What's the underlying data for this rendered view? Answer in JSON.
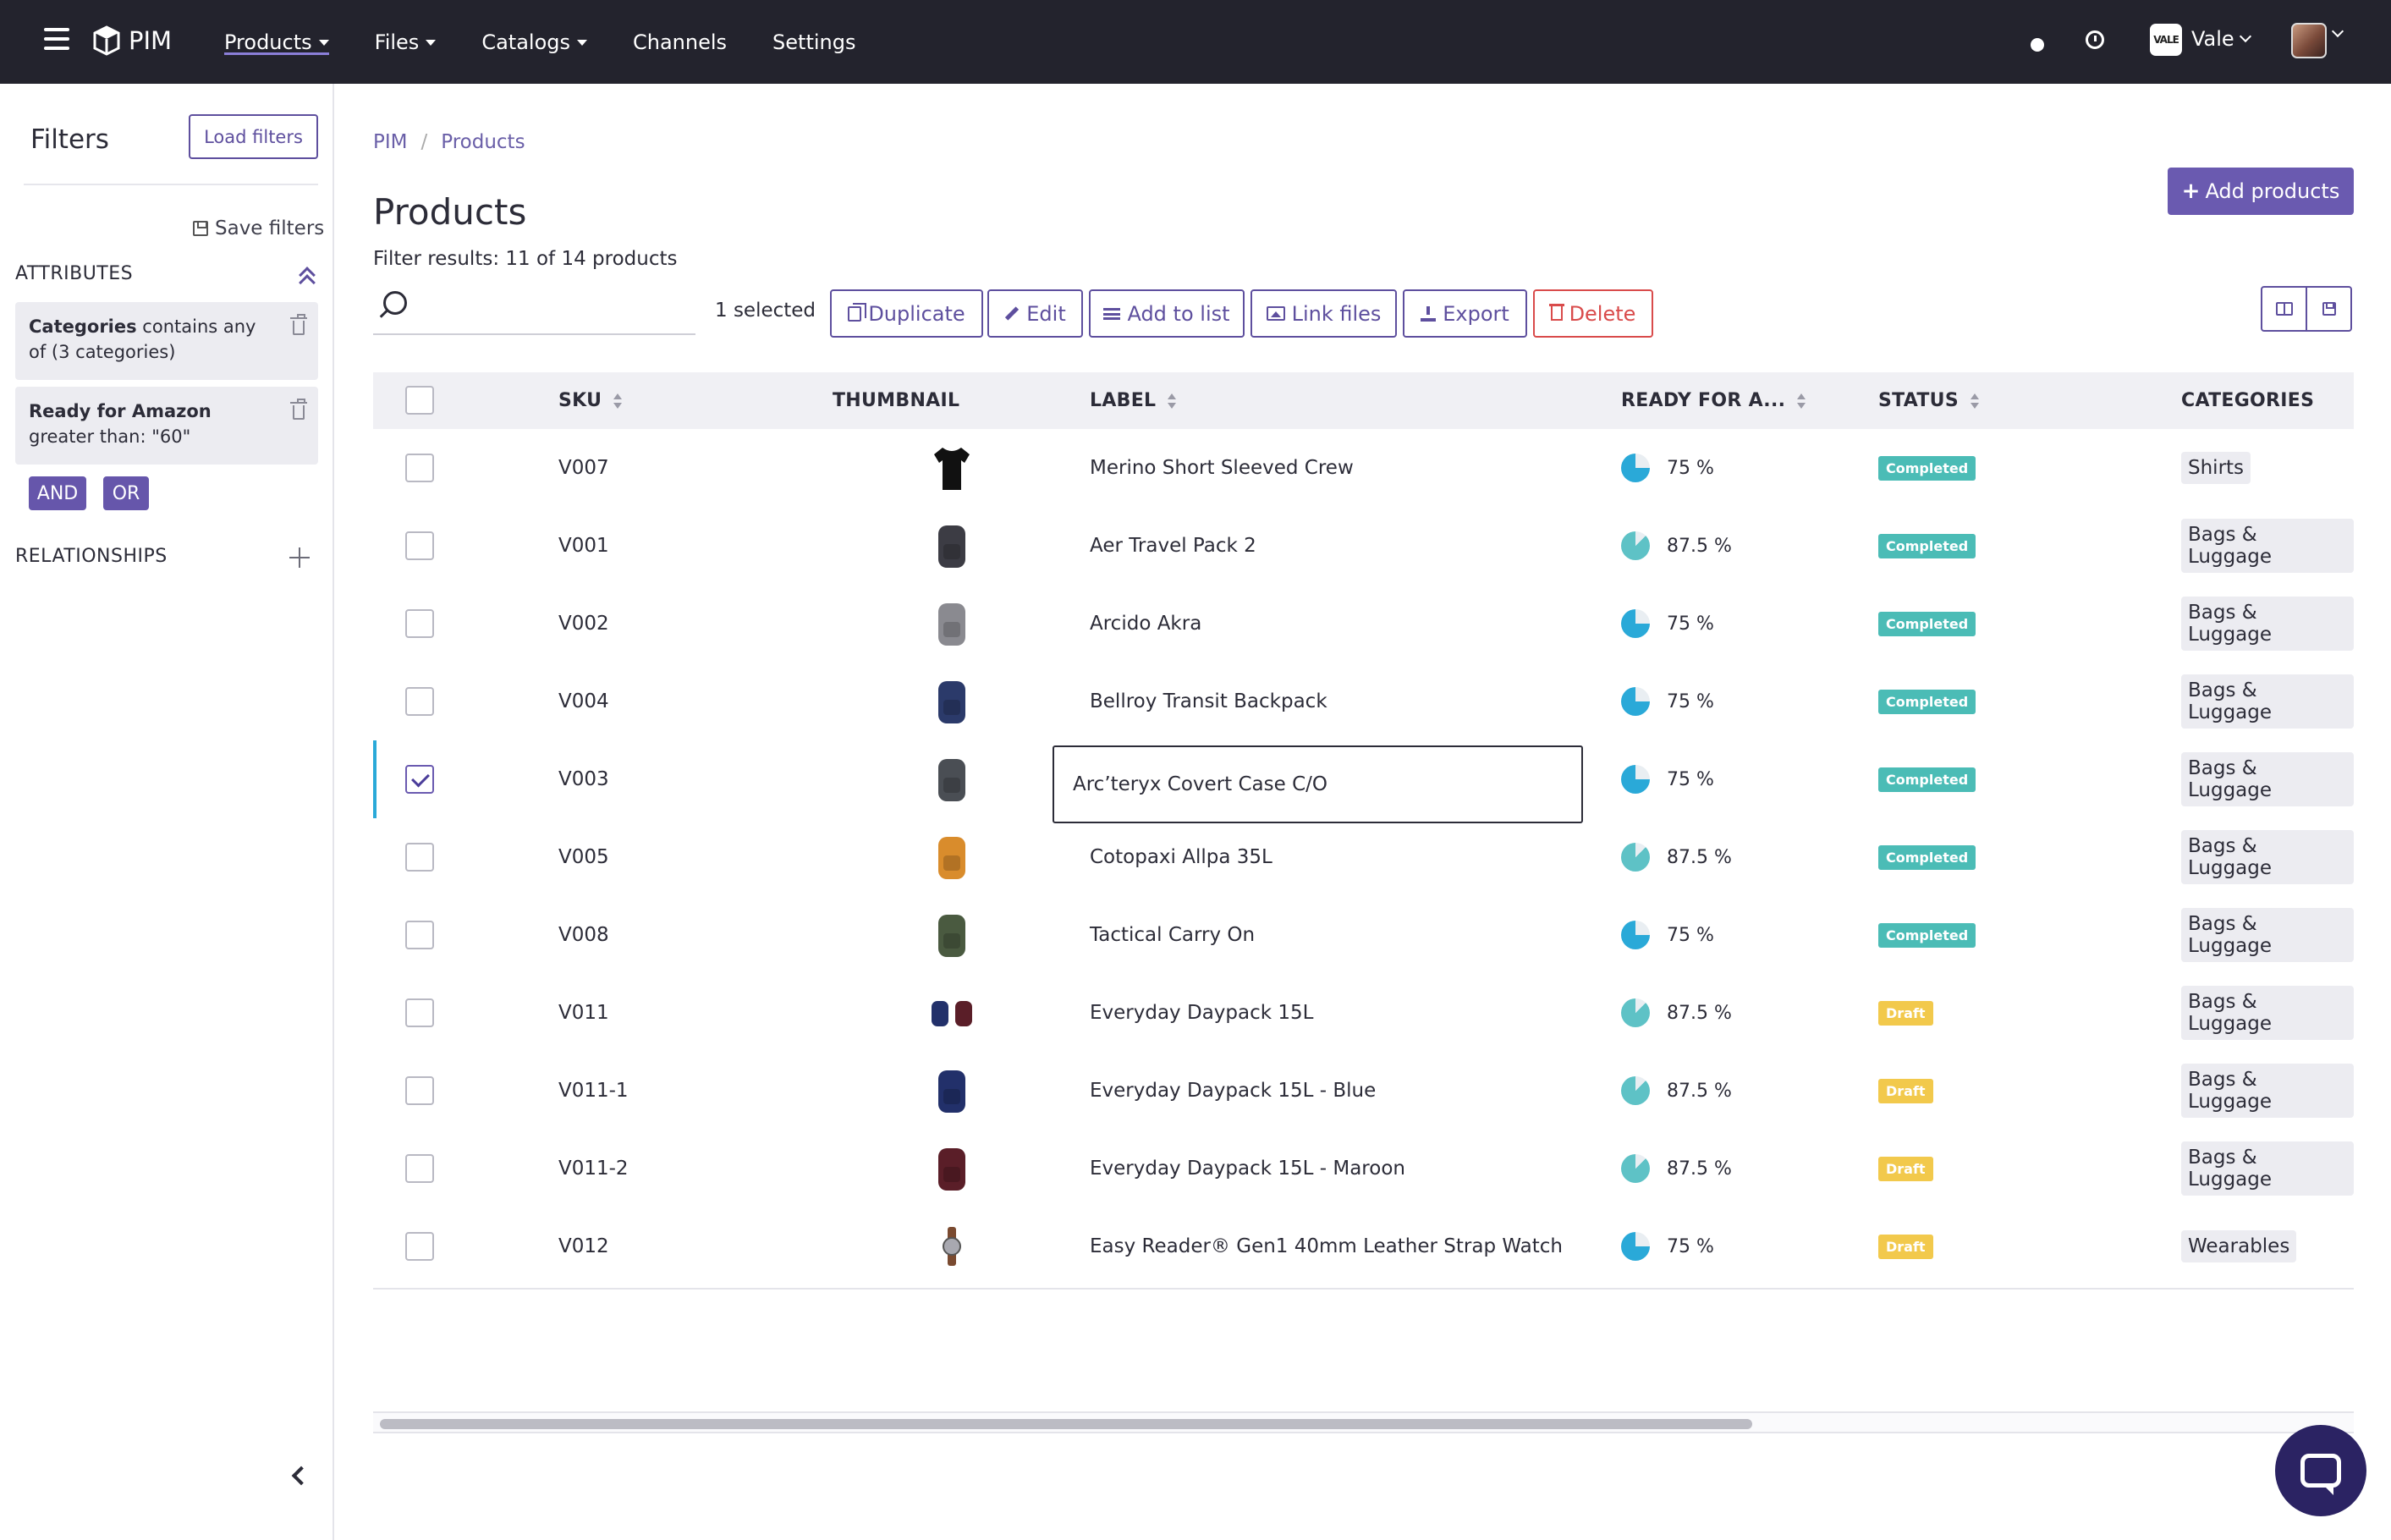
{
  "app": {
    "brand": "PIM"
  },
  "nav": [
    {
      "label": "Products",
      "dropdown": true,
      "active": true
    },
    {
      "label": "Files",
      "dropdown": true
    },
    {
      "label": "Catalogs",
      "dropdown": true
    },
    {
      "label": "Channels",
      "dropdown": false
    },
    {
      "label": "Settings",
      "dropdown": false
    }
  ],
  "header": {
    "org_logo": "VALE",
    "org_name": "Vale"
  },
  "sidebar": {
    "title": "Filters",
    "load_filters": "Load filters",
    "save_filters": "Save filters",
    "attributes_label": "ATTRIBUTES",
    "filters": [
      {
        "field": "Categories",
        "rest": " contains any of (3 categories)"
      },
      {
        "field": "Ready for Amazon",
        "rest": " greater than: \"60\""
      }
    ],
    "and_label": "AND",
    "or_label": "OR",
    "relationships_label": "RELATIONSHIPS"
  },
  "breadcrumb": {
    "root": "PIM",
    "sep": "/",
    "current": "Products"
  },
  "page": {
    "title": "Products",
    "filter_results": "Filter results: 11 of 14 products",
    "add_products": "Add products",
    "search_placeholder": "",
    "selected_count": "1 selected"
  },
  "actions": {
    "duplicate": "Duplicate",
    "edit": "Edit",
    "add_to_list": "Add to list",
    "link_files": "Link files",
    "export": "Export",
    "delete": "Delete"
  },
  "colors": {
    "completed": "#4bbcb6",
    "draft": "#f2c94c",
    "pie_75": "#2aa9d8",
    "pie_87": "#5ec2c6",
    "accent": "#6a5ab0"
  },
  "table": {
    "columns": {
      "sku": "SKU",
      "thumbnail": "THUMBNAIL",
      "label": "LABEL",
      "ready": "READY FOR A...",
      "status": "STATUS",
      "categories": "CATEGORIES"
    },
    "editing_value": "Arc’teryx Covert Case C/O",
    "rows": [
      {
        "sku": "V007",
        "thumb": "tshirt-icon",
        "label": "Merino Short Sleeved Crew",
        "ready_pct": "75 %",
        "ready_fraction": 0.75,
        "status": "Completed",
        "category": "Shirts",
        "selected": false
      },
      {
        "sku": "V001",
        "thumb": "backpack-icon",
        "label": "Aer Travel Pack 2",
        "ready_pct": "87.5 %",
        "ready_fraction": 0.875,
        "status": "Completed",
        "category": "Bags & Luggage",
        "selected": false
      },
      {
        "sku": "V002",
        "thumb": "backpack-icon",
        "label": "Arcido Akra",
        "ready_pct": "75 %",
        "ready_fraction": 0.75,
        "status": "Completed",
        "category": "Bags & Luggage",
        "selected": false
      },
      {
        "sku": "V004",
        "thumb": "backpack-icon",
        "label": "Bellroy Transit Backpack",
        "ready_pct": "75 %",
        "ready_fraction": 0.75,
        "status": "Completed",
        "category": "Bags & Luggage",
        "selected": false
      },
      {
        "sku": "V003",
        "thumb": "backpack-icon",
        "label": "Arc’teryx Covert Case C/O",
        "ready_pct": "75 %",
        "ready_fraction": 0.75,
        "status": "Completed",
        "category": "Bags & Luggage",
        "selected": true
      },
      {
        "sku": "V005",
        "thumb": "backpack-icon",
        "label": "Cotopaxi Allpa 35L",
        "ready_pct": "87.5 %",
        "ready_fraction": 0.875,
        "status": "Completed",
        "category": "Bags & Luggage",
        "selected": false
      },
      {
        "sku": "V008",
        "thumb": "backpack-icon",
        "label": "Tactical Carry On",
        "ready_pct": "75 %",
        "ready_fraction": 0.75,
        "status": "Completed",
        "category": "Bags & Luggage",
        "selected": false
      },
      {
        "sku": "V011",
        "thumb": "backpack-pair-icon",
        "label": "Everyday Daypack 15L",
        "ready_pct": "87.5 %",
        "ready_fraction": 0.875,
        "status": "Draft",
        "category": "Bags & Luggage",
        "selected": false
      },
      {
        "sku": "V011-1",
        "thumb": "backpack-icon",
        "label": "Everyday Daypack 15L - Blue",
        "ready_pct": "87.5 %",
        "ready_fraction": 0.875,
        "status": "Draft",
        "category": "Bags & Luggage",
        "selected": false
      },
      {
        "sku": "V011-2",
        "thumb": "backpack-icon",
        "label": "Everyday Daypack 15L - Maroon",
        "ready_pct": "87.5 %",
        "ready_fraction": 0.875,
        "status": "Draft",
        "category": "Bags & Luggage",
        "selected": false
      },
      {
        "sku": "V012",
        "thumb": "watch-icon",
        "label": "Easy Reader® Gen1 40mm Leather Strap Watch",
        "ready_pct": "75 %",
        "ready_fraction": 0.75,
        "status": "Draft",
        "category": "Wearables",
        "selected": false
      }
    ]
  }
}
